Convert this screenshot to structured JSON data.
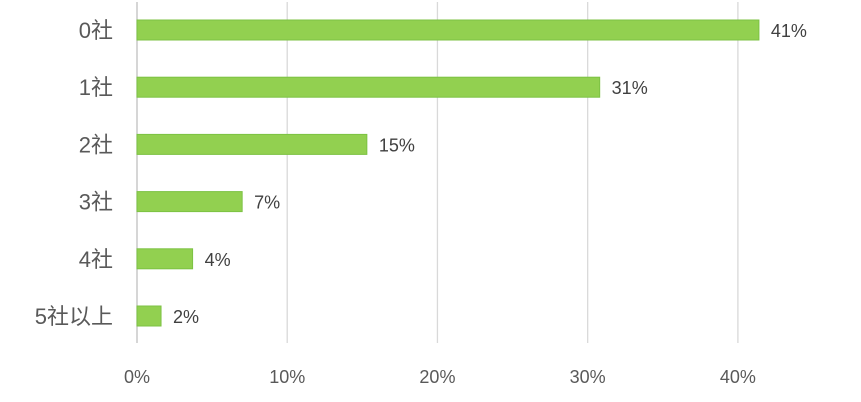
{
  "chart_data": {
    "type": "bar",
    "orientation": "horizontal",
    "categories": [
      "0社",
      "1社",
      "2社",
      "3社",
      "4社",
      "5社以上"
    ],
    "values": [
      41.4,
      30.8,
      15.3,
      7.0,
      3.7,
      1.6
    ],
    "data_labels": [
      "41%",
      "31%",
      "15%",
      "7%",
      "4%",
      "2%"
    ],
    "x_ticks": [
      0,
      10,
      20,
      30,
      40
    ],
    "x_tick_labels": [
      "0%",
      "10%",
      "20%",
      "30%",
      "40%"
    ],
    "xlim": [
      0,
      45
    ],
    "grid": true,
    "legend": "none",
    "colors": {
      "bar": "#92d050",
      "grid": "#d9d9d9",
      "text": "#595959"
    },
    "title": "",
    "xlabel": "",
    "ylabel": ""
  }
}
